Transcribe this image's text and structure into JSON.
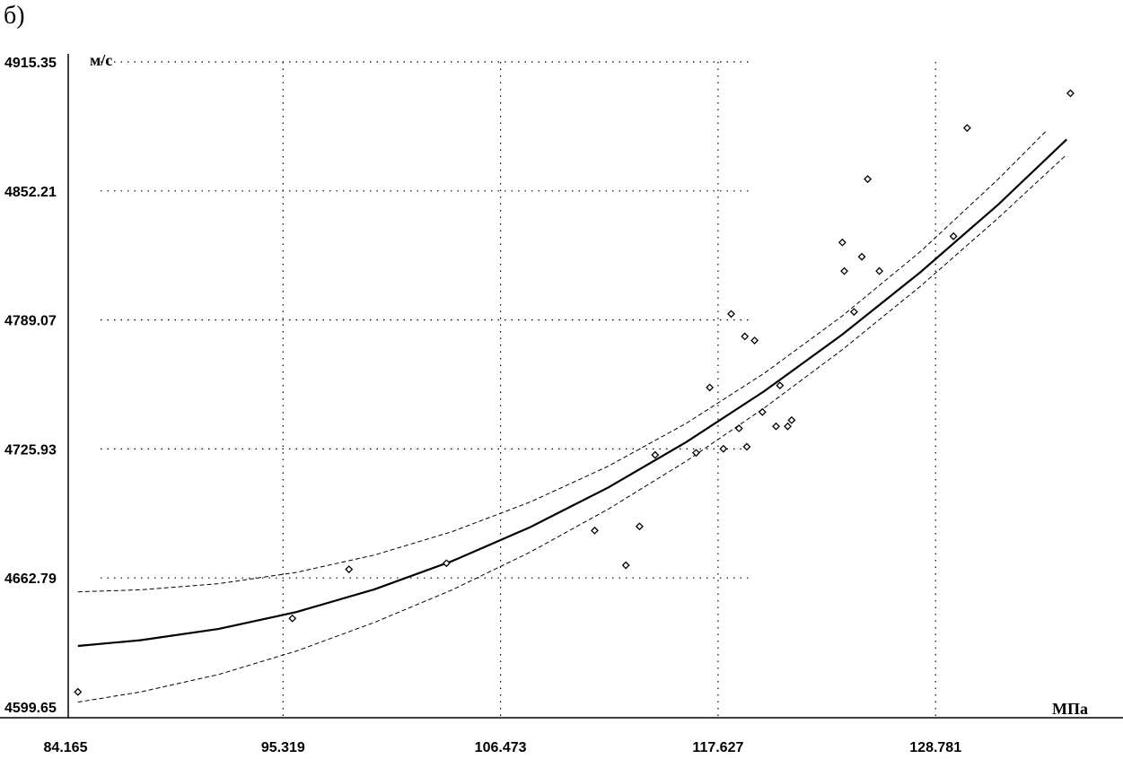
{
  "panel_label": "б)",
  "chart_data": {
    "type": "scatter",
    "ylabel": "м/с",
    "xlabel": "МПа",
    "xlim": [
      84.165,
      135.5
    ],
    "ylim": [
      4599.65,
      4915.35
    ],
    "x_ticks": [
      "84.165",
      "95.319",
      "106.473",
      "117.627",
      "128.781"
    ],
    "y_ticks": [
      "4915.35",
      "4852.21",
      "4789.07",
      "4725.93",
      "4662.79",
      "4599.65"
    ],
    "grid": true,
    "series": [
      {
        "kind": "points",
        "x": [
          84.8,
          95.8,
          98.7,
          103.7,
          111.3,
          112.9,
          113.6,
          114.4,
          116.5,
          117.2,
          117.9,
          118.3,
          118.7,
          119.0,
          119.1,
          119.5,
          119.9,
          120.6,
          120.8,
          121.2,
          121.4,
          124.0,
          124.1,
          124.6,
          125.0,
          125.3,
          125.9,
          129.7,
          130.4,
          135.7
        ],
        "y": [
          4607,
          4643,
          4667,
          4670,
          4686,
          4669,
          4688,
          4723,
          4724,
          4756,
          4726,
          4792,
          4736,
          4781,
          4727,
          4779,
          4744,
          4737,
          4757,
          4737,
          4740,
          4827,
          4813,
          4793,
          4820,
          4858,
          4813,
          4830,
          4883,
          4900
        ]
      },
      {
        "kind": "fit",
        "x": [
          84.8,
          88,
          92,
          96,
          100,
          104,
          108,
          112,
          116,
          120,
          124,
          128,
          132,
          135.5
        ],
        "y": [
          4629.5,
          4632.3,
          4637.8,
          4646.1,
          4657.2,
          4671.1,
          4687.7,
          4707.1,
          4729.3,
          4754.2,
          4781.9,
          4812.4,
          4845.6,
          4877.4
        ]
      },
      {
        "kind": "band-upper",
        "x": [
          84.8,
          88,
          92,
          96,
          100,
          104,
          108,
          112,
          116,
          120,
          124,
          128,
          132,
          134.5
        ],
        "y": [
          4656,
          4657,
          4660,
          4665.5,
          4674,
          4685.5,
          4700,
          4717.5,
          4738.5,
          4763,
          4791,
          4822.5,
          4858,
          4882
        ]
      },
      {
        "kind": "band-lower",
        "x": [
          84.8,
          88,
          92,
          96,
          100,
          104,
          108,
          112,
          116,
          120,
          124,
          128,
          132,
          135.5
        ],
        "y": [
          4602,
          4607,
          4615.5,
          4627,
          4641,
          4657,
          4675.5,
          4696.5,
          4720,
          4746,
          4774.5,
          4805.5,
          4839,
          4870
        ]
      }
    ]
  }
}
